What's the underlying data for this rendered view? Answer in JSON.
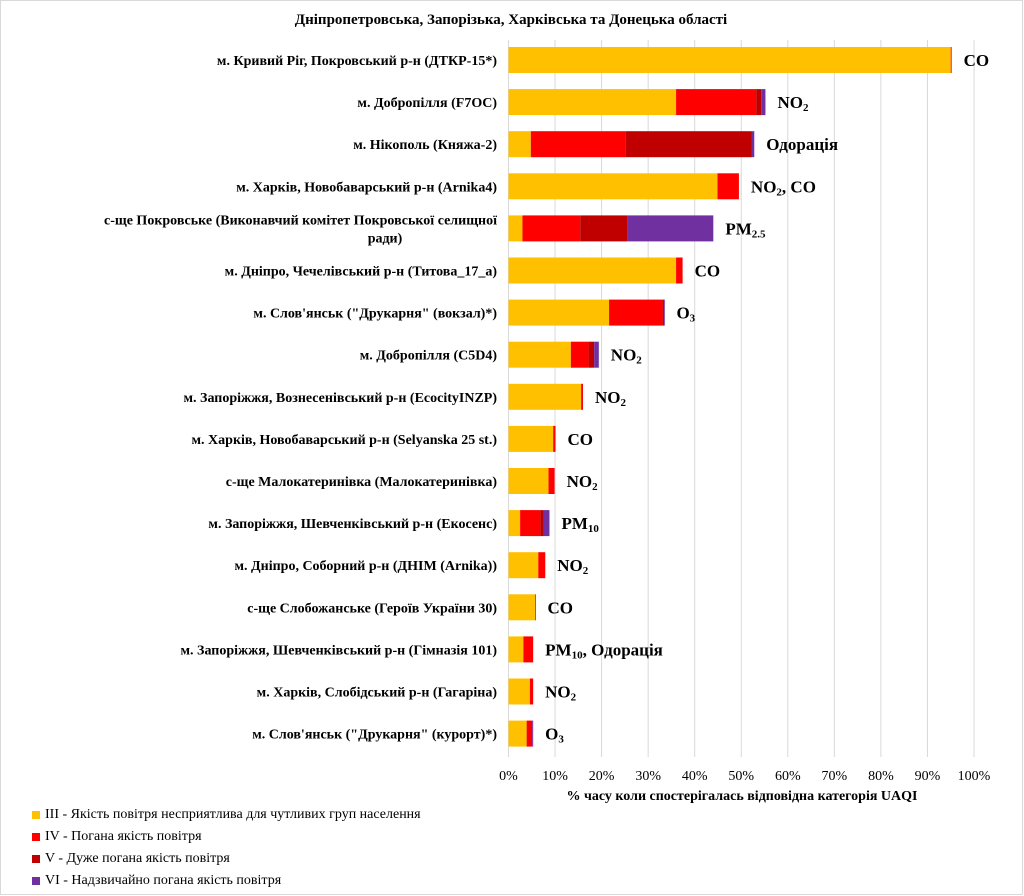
{
  "chart_data": {
    "type": "bar",
    "orientation": "horizontal",
    "stacked": true,
    "title": "Дніпропетровська, Запорізька, Харківська та Донецька області",
    "xlabel": "% часу коли спостерігалась відповідна категорія UAQI",
    "ylabel": "",
    "xlim": [
      0,
      100
    ],
    "x_ticks": [
      "0%",
      "10%",
      "20%",
      "30%",
      "40%",
      "50%",
      "60%",
      "70%",
      "80%",
      "90%",
      "100%"
    ],
    "grid": "vertical",
    "legend_position": "bottom-left",
    "categories": [
      "м. Кривий Ріг, Покровський р-н (ДТКР-15*)",
      "м. Добропілля (F7OC)",
      "м. Нікополь (Княжа-2)",
      "м. Харків, Новобаварський р-н (Arnika4)",
      "с-ще Покровське (Виконавчий комітет Покровської селищної ради)",
      "м. Дніпро, Чечелівський р-н (Титова_17_а)",
      "м. Слов'янськ (\"Друкарня\" (вокзал)*)",
      "м. Добропілля (C5D4)",
      "м. Запоріжжя, Вознесенівський р-н (EcocityINZP)",
      "м. Харків, Новобаварський р-н (Selyanska 25 st.)",
      "с-ще Малокатеринівка (Малокатеринівка)",
      "м. Запоріжжя, Шевченківський р-н (Екосенс)",
      "м. Дніпро, Соборний р-н (ДНІМ (Arnika))",
      "с-ще Слобожанське (Героїв України 30)",
      "м. Запоріжжя, Шевченківський р-н (Гімназія 101)",
      "м. Харків, Слобідський р-н (Гагаріна)",
      "м. Слов'янськ (\"Друкарня\" (курорт)*)"
    ],
    "category_lines": [
      [
        "м. Кривий Ріг, Покровський р-н (ДТКР-15*)"
      ],
      [
        "м. Добропілля (F7OC)"
      ],
      [
        "м. Нікополь (Княжа-2)"
      ],
      [
        "м. Харків, Новобаварський р-н (Arnika4)"
      ],
      [
        "с-ще Покровське (Виконавчий комітет Покровської селищної",
        "ради)"
      ],
      [
        "м. Дніпро, Чечелівський р-н (Титова_17_а)"
      ],
      [
        "м. Слов'янськ (\"Друкарня\" (вокзал)*)"
      ],
      [
        "м. Добропілля (C5D4)"
      ],
      [
        "м. Запоріжжя, Вознесенівський р-н (EcocityINZP)"
      ],
      [
        "м. Харків, Новобаварський р-н (Selyanska 25 st.)"
      ],
      [
        "с-ще Малокатеринівка (Малокатеринівка)"
      ],
      [
        "м. Запоріжжя, Шевченківський р-н (Екосенс)"
      ],
      [
        "м. Дніпро, Соборний р-н (ДНІМ (Arnika))"
      ],
      [
        "с-ще Слобожанське (Героїв України 30)"
      ],
      [
        "м. Запоріжжя, Шевченківський р-н (Гімназія 101)"
      ],
      [
        "м. Харків, Слобідський р-н (Гагаріна)"
      ],
      [
        "м. Слов'янськ (\"Друкарня\" (курорт)*)"
      ]
    ],
    "series": [
      {
        "name": "III - Якість повітря несприятлива для чутливих груп населення",
        "color": "#FFC000",
        "values": [
          95.0,
          36.0,
          4.8,
          44.9,
          3.0,
          36.0,
          21.6,
          13.4,
          15.6,
          9.6,
          8.6,
          2.5,
          6.4,
          5.7,
          3.2,
          4.6,
          3.9
        ]
      },
      {
        "name": "IV - Погана якість повітря",
        "color": "#FF0000",
        "values": [
          0.2,
          17.2,
          20.3,
          4.6,
          12.4,
          1.4,
          11.5,
          3.8,
          0.4,
          0.5,
          1.3,
          4.3,
          1.5,
          0.1,
          2.1,
          0.7,
          1.2
        ]
      },
      {
        "name": "V - Дуже погана якість повітря",
        "color": "#C00000",
        "values": [
          0,
          1.1,
          27.1,
          0,
          10.2,
          0,
          0.3,
          1.2,
          0,
          0,
          0,
          0.8,
          0,
          0,
          0,
          0,
          0
        ]
      },
      {
        "name": "VI - Надзвичайно погана якість повітря",
        "color": "#7030A0",
        "values": [
          0,
          0.9,
          0.6,
          0,
          18.4,
          0,
          0.1,
          1.0,
          0,
          0,
          0,
          1.2,
          0,
          0,
          0,
          0,
          0.2
        ]
      }
    ],
    "annotations": [
      [
        {
          "t": "CO"
        }
      ],
      [
        {
          "t": "NO"
        },
        {
          "t": "2",
          "sub": true
        }
      ],
      [
        {
          "t": "Одорація"
        }
      ],
      [
        {
          "t": "NO"
        },
        {
          "t": "2",
          "sub": true
        },
        {
          "t": ", CO"
        }
      ],
      [
        {
          "t": "PM"
        },
        {
          "t": "2.5",
          "sub": true
        }
      ],
      [
        {
          "t": "CO"
        }
      ],
      [
        {
          "t": "O"
        },
        {
          "t": "3",
          "sub": true
        }
      ],
      [
        {
          "t": "NO"
        },
        {
          "t": "2",
          "sub": true
        }
      ],
      [
        {
          "t": "NO"
        },
        {
          "t": "2",
          "sub": true
        }
      ],
      [
        {
          "t": "CO"
        }
      ],
      [
        {
          "t": "NO"
        },
        {
          "t": "2",
          "sub": true
        }
      ],
      [
        {
          "t": "PM"
        },
        {
          "t": "10",
          "sub": true
        }
      ],
      [
        {
          "t": "NO"
        },
        {
          "t": "2",
          "sub": true
        }
      ],
      [
        {
          "t": "CO"
        }
      ],
      [
        {
          "t": "PM"
        },
        {
          "t": "10",
          "sub": true
        },
        {
          "t": ", Одорація"
        }
      ],
      [
        {
          "t": "NO"
        },
        {
          "t": "2",
          "sub": true
        }
      ],
      [
        {
          "t": "O"
        },
        {
          "t": "3",
          "sub": true
        }
      ]
    ]
  }
}
